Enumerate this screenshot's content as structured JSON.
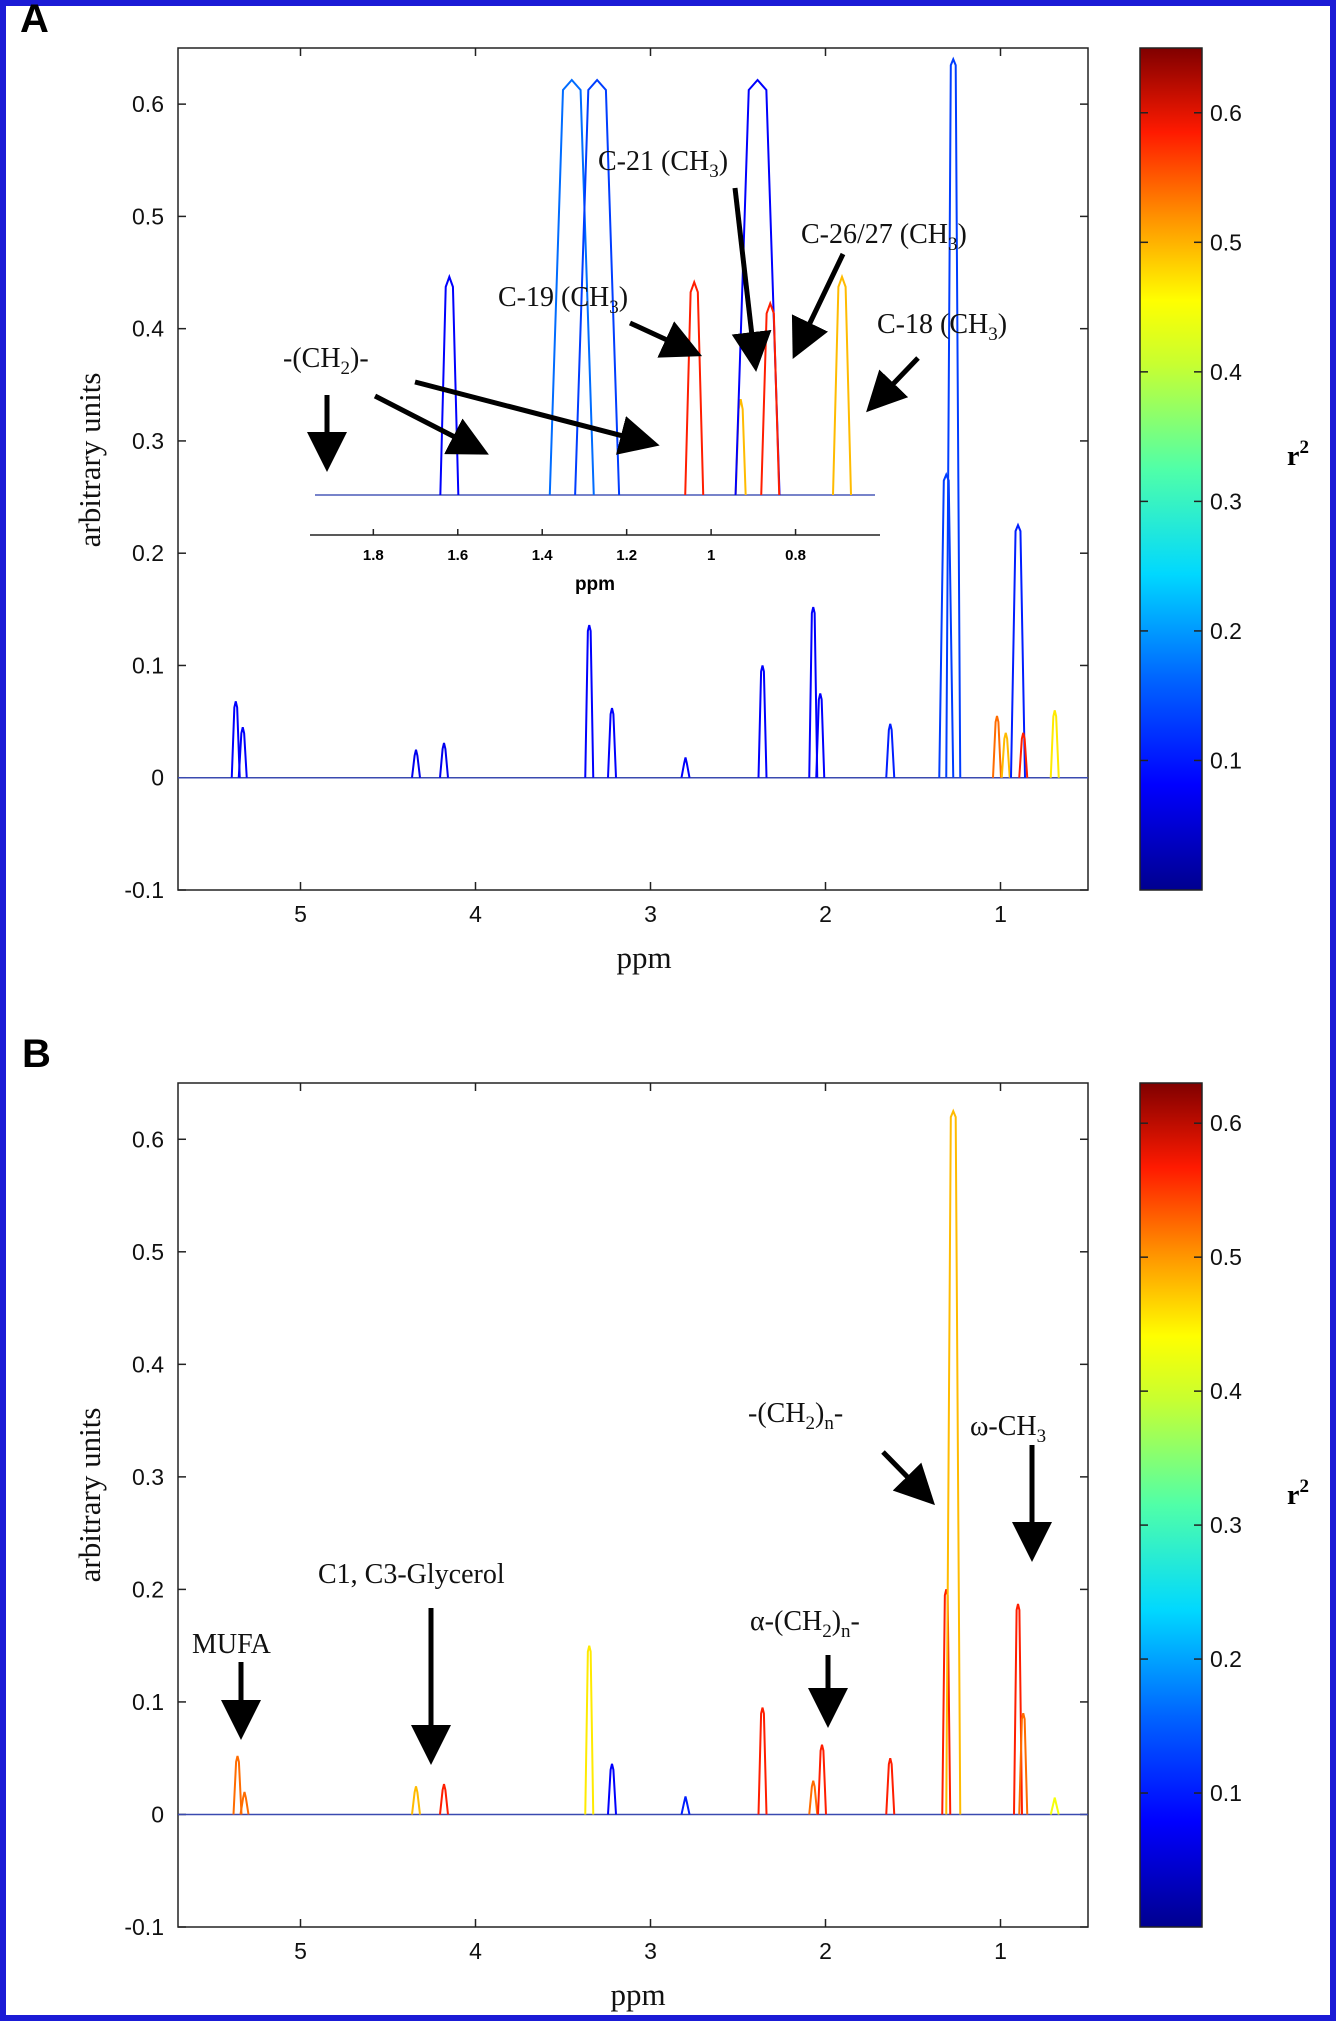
{
  "colors": {
    "frame": "#1b1bd6",
    "colormap": [
      "#00008f",
      "#0000ff",
      "#0080ff",
      "#00ffff",
      "#80ff80",
      "#ffff00",
      "#ff8000",
      "#ff0000",
      "#800000"
    ]
  },
  "panels": [
    {
      "letter": "A",
      "xlabel": "ppm",
      "ylabel": "arbitrary units",
      "xticks": [
        "5",
        "4",
        "3",
        "2",
        "1"
      ],
      "yticks": [
        "-0.1",
        "0",
        "0.1",
        "0.2",
        "0.3",
        "0.4",
        "0.5",
        "0.6"
      ],
      "colorbar": {
        "label": "r",
        "label_sup": "2",
        "ticks": [
          "0.1",
          "0.2",
          "0.3",
          "0.4",
          "0.5",
          "0.6"
        ],
        "range": [
          0,
          0.65
        ]
      },
      "inset": {
        "xlabel": "ppm",
        "xticks": [
          "1.8",
          "1.6",
          "1.4",
          "1.2",
          "1",
          "0.8"
        ],
        "annotations": [
          {
            "main": "-(CH",
            "sub": "2",
            "tail": ")-"
          },
          {
            "main": "C-19 (CH",
            "sub": "3",
            "tail": ")"
          },
          {
            "main": "C-21 (CH",
            "sub": "3",
            "tail": ")"
          },
          {
            "main": "C-26/27 (CH",
            "sub": "3",
            "tail": ")"
          },
          {
            "main": "C-18 (CH",
            "sub": "3",
            "tail": ")"
          }
        ]
      }
    },
    {
      "letter": "B",
      "xlabel": "ppm",
      "ylabel": "arbitrary units",
      "xticks": [
        "5",
        "4",
        "3",
        "2",
        "1"
      ],
      "yticks": [
        "-0.1",
        "0",
        "0.1",
        "0.2",
        "0.3",
        "0.4",
        "0.5",
        "0.6"
      ],
      "colorbar": {
        "label": "r",
        "label_sup": "2",
        "ticks": [
          "0.1",
          "0.2",
          "0.3",
          "0.4",
          "0.5",
          "0.6"
        ],
        "range": [
          0,
          0.63
        ]
      },
      "annotations": [
        {
          "text": "MUFA"
        },
        {
          "text": "C1, C3-Glycerol"
        },
        {
          "main": "α-(CH",
          "sub": "2",
          "tail": ")",
          "sub2": "n",
          "tail2": "-"
        },
        {
          "main": "-(CH",
          "sub": "2",
          "tail": ")",
          "sub2": "n",
          "tail2": "-"
        },
        {
          "text": "ω-CH",
          "sub": "3"
        }
      ]
    }
  ],
  "chart_data": [
    {
      "type": "line",
      "title": "A",
      "xlabel": "ppm",
      "ylabel": "arbitrary units",
      "xlim": [
        5.7,
        0.5
      ],
      "ylim": [
        -0.1,
        0.65
      ],
      "x_reversed": true,
      "color_by": "r2",
      "peaks": [
        {
          "x": 5.37,
          "y": 0.068,
          "r2": 0.08
        },
        {
          "x": 5.33,
          "y": 0.045,
          "r2": 0.08
        },
        {
          "x": 4.34,
          "y": 0.025,
          "r2": 0.07
        },
        {
          "x": 4.18,
          "y": 0.031,
          "r2": 0.07
        },
        {
          "x": 3.35,
          "y": 0.136,
          "r2": 0.08
        },
        {
          "x": 3.22,
          "y": 0.062,
          "r2": 0.08
        },
        {
          "x": 2.8,
          "y": 0.018,
          "r2": 0.08
        },
        {
          "x": 2.36,
          "y": 0.1,
          "r2": 0.08
        },
        {
          "x": 2.07,
          "y": 0.152,
          "r2": 0.08
        },
        {
          "x": 2.03,
          "y": 0.075,
          "r2": 0.08
        },
        {
          "x": 1.63,
          "y": 0.048,
          "r2": 0.1
        },
        {
          "x": 1.31,
          "y": 0.27,
          "r2": 0.12
        },
        {
          "x": 1.27,
          "y": 0.64,
          "r2": 0.12
        },
        {
          "x": 1.02,
          "y": 0.055,
          "r2": 0.5
        },
        {
          "x": 0.97,
          "y": 0.04,
          "r2": 0.45
        },
        {
          "x": 0.9,
          "y": 0.225,
          "r2": 0.1
        },
        {
          "x": 0.87,
          "y": 0.04,
          "r2": 0.55
        },
        {
          "x": 0.69,
          "y": 0.06,
          "r2": 0.42
        }
      ],
      "inset": {
        "xlabel": "ppm",
        "xlim": [
          1.95,
          0.6
        ],
        "peaks": [
          {
            "x": 1.62,
            "y": 0.465,
            "r2": 0.08
          },
          {
            "x": 1.33,
            "y": 0.65,
            "r2": 0.15
          },
          {
            "x": 1.27,
            "y": 0.65,
            "r2": 0.12
          },
          {
            "x": 1.04,
            "y": 0.46,
            "r2": 0.55
          },
          {
            "x": 0.93,
            "y": 0.35,
            "r2": 0.45
          },
          {
            "x": 0.89,
            "y": 0.65,
            "r2": 0.08
          },
          {
            "x": 0.86,
            "y": 0.44,
            "r2": 0.55
          },
          {
            "x": 0.69,
            "y": 0.465,
            "r2": 0.45
          }
        ]
      }
    },
    {
      "type": "line",
      "title": "B",
      "xlabel": "ppm",
      "ylabel": "arbitrary units",
      "xlim": [
        5.7,
        0.5
      ],
      "ylim": [
        -0.1,
        0.65
      ],
      "x_reversed": true,
      "color_by": "r2",
      "peaks": [
        {
          "x": 5.36,
          "y": 0.052,
          "r2": 0.5
        },
        {
          "x": 5.32,
          "y": 0.02,
          "r2": 0.5
        },
        {
          "x": 4.34,
          "y": 0.025,
          "r2": 0.45
        },
        {
          "x": 4.18,
          "y": 0.027,
          "r2": 0.55
        },
        {
          "x": 3.35,
          "y": 0.15,
          "r2": 0.42
        },
        {
          "x": 3.22,
          "y": 0.045,
          "r2": 0.08
        },
        {
          "x": 2.8,
          "y": 0.016,
          "r2": 0.1
        },
        {
          "x": 2.36,
          "y": 0.095,
          "r2": 0.55
        },
        {
          "x": 2.07,
          "y": 0.03,
          "r2": 0.5
        },
        {
          "x": 2.02,
          "y": 0.062,
          "r2": 0.55
        },
        {
          "x": 1.63,
          "y": 0.05,
          "r2": 0.55
        },
        {
          "x": 1.31,
          "y": 0.2,
          "r2": 0.55
        },
        {
          "x": 1.27,
          "y": 0.625,
          "r2": 0.45
        },
        {
          "x": 0.9,
          "y": 0.187,
          "r2": 0.55
        },
        {
          "x": 0.87,
          "y": 0.09,
          "r2": 0.5
        },
        {
          "x": 0.69,
          "y": 0.015,
          "r2": 0.4
        }
      ]
    }
  ]
}
